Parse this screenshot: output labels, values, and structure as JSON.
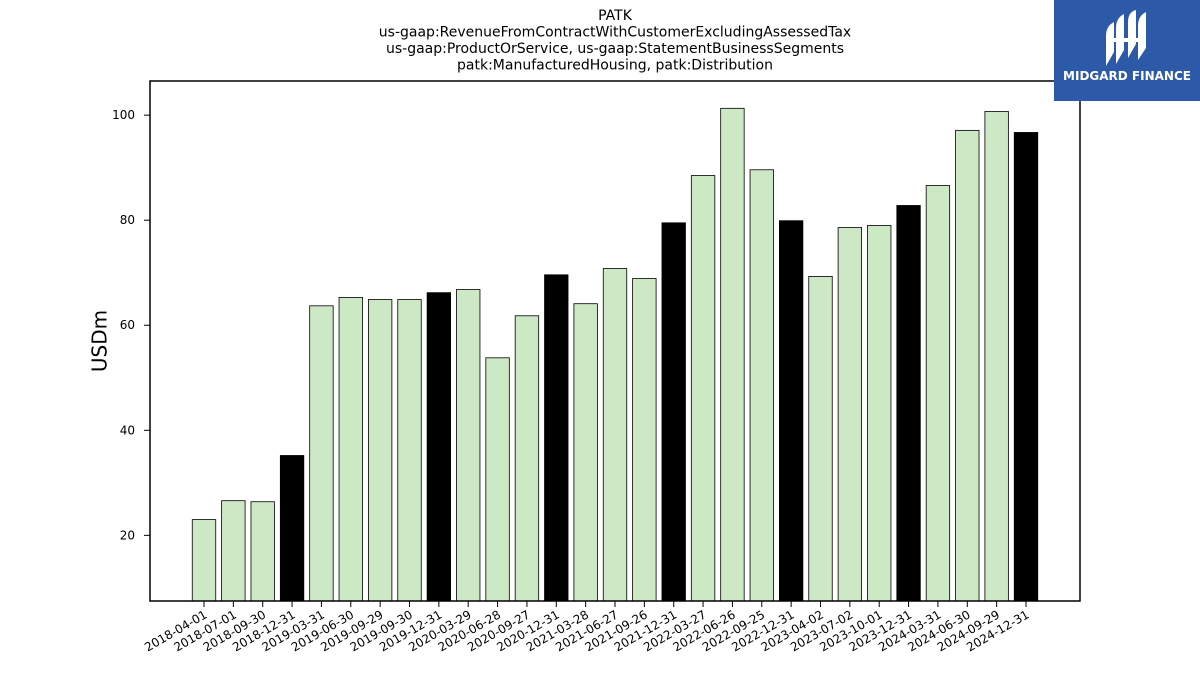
{
  "chart_data": {
    "type": "bar",
    "title_lines": [
      "PATK",
      "us-gaap:RevenueFromContractWithCustomerExcludingAssessedTax",
      "us-gaap:ProductOrService, us-gaap:StatementBusinessSegments",
      "patk:ManufacturedHousing, patk:Distribution"
    ],
    "xlabel": "",
    "ylabel": "USDm",
    "ylim": [
      7.5,
      106.5
    ],
    "yticks": [
      20,
      40,
      60,
      80,
      100
    ],
    "grid": false,
    "categories": [
      "2018-04-01",
      "2018-07-01",
      "2018-09-30",
      "2018-12-31",
      "2019-03-31",
      "2019-06-30",
      "2019-09-29",
      "2019-09-30",
      "2019-12-31",
      "2020-03-29",
      "2020-06-28",
      "2020-09-27",
      "2020-12-31",
      "2021-03-28",
      "2021-06-27",
      "2021-09-26",
      "2021-12-31",
      "2022-03-27",
      "2022-06-26",
      "2022-09-25",
      "2022-12-31",
      "2023-04-02",
      "2023-07-02",
      "2023-10-01",
      "2023-12-31",
      "2024-03-31",
      "2024-06-30",
      "2024-09-29",
      "2024-12-31"
    ],
    "values": [
      23.0,
      26.6,
      26.4,
      35.2,
      63.7,
      65.3,
      64.9,
      64.9,
      66.2,
      66.8,
      53.8,
      61.8,
      69.6,
      64.1,
      70.8,
      68.9,
      79.5,
      88.5,
      101.3,
      89.6,
      79.9,
      69.3,
      78.6,
      79.0,
      82.8,
      86.6,
      97.1,
      100.7,
      96.7
    ],
    "highlight": [
      false,
      false,
      false,
      true,
      false,
      false,
      false,
      false,
      true,
      false,
      false,
      false,
      true,
      false,
      false,
      false,
      true,
      false,
      false,
      false,
      true,
      false,
      false,
      false,
      true,
      false,
      false,
      false,
      true
    ],
    "colors": {
      "bar": "#cde8c5",
      "bar_highlight": "#000000",
      "edge": "#000000"
    }
  },
  "logo": {
    "text": "MIDGARD FINANCE",
    "background": "#2d5aa8",
    "icon": "midgard-logo-icon"
  }
}
